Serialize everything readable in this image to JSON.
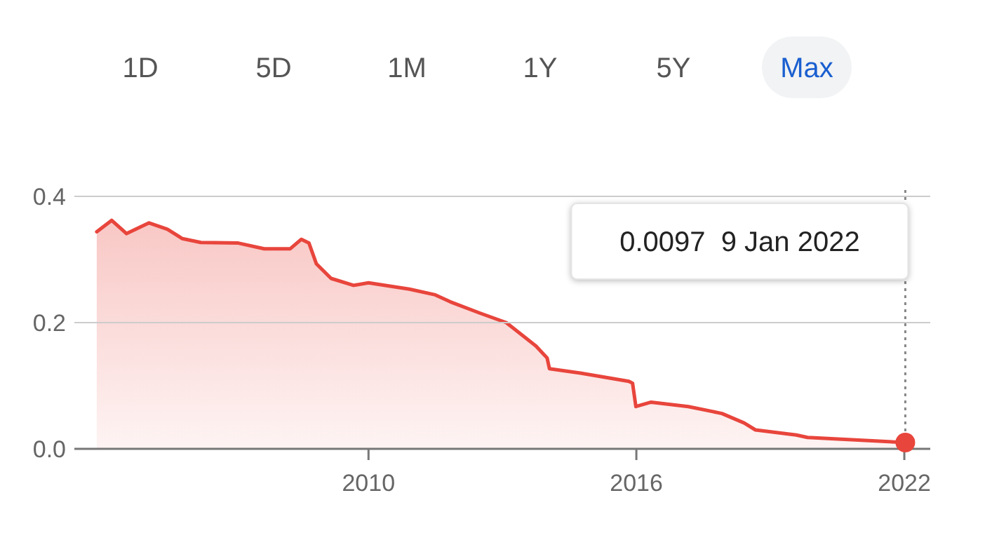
{
  "chart_data": {
    "type": "area",
    "x": [
      "2003-12",
      "2004-04",
      "2004-08",
      "2005-02",
      "2005-07",
      "2005-11",
      "2006-04",
      "2007-02",
      "2007-09",
      "2008-04",
      "2008-07",
      "2008-09",
      "2008-11",
      "2009-03",
      "2009-09",
      "2010-01",
      "2010-12",
      "2011-07",
      "2011-11",
      "2012-07",
      "2013-02",
      "2013-10",
      "2014-01-01",
      "2014-01-20",
      "2014-10",
      "2015-11",
      "2015-12-01",
      "2015-12-28",
      "2016-05",
      "2017-03",
      "2017-12",
      "2018-06",
      "2018-09",
      "2019-08",
      "2019-11",
      "2022-01-09"
    ],
    "series": [
      {
        "color": "#e8453c",
        "values": [
          0.344,
          0.362,
          0.341,
          0.358,
          0.348,
          0.333,
          0.327,
          0.326,
          0.317,
          0.317,
          0.332,
          0.326,
          0.293,
          0.27,
          0.259,
          0.263,
          0.253,
          0.244,
          0.233,
          0.215,
          0.2,
          0.163,
          0.144,
          0.127,
          0.12,
          0.107,
          0.104,
          0.067,
          0.074,
          0.067,
          0.056,
          0.041,
          0.03,
          0.022,
          0.018,
          0.01
        ]
      }
    ],
    "xlim": [
      "2003-06",
      "2022-08"
    ],
    "xticks": [
      {
        "value": "2010",
        "label": "2010"
      },
      {
        "value": "2016",
        "label": "2016"
      },
      {
        "value": "2022",
        "label": "2022"
      }
    ],
    "ylim": [
      0,
      0.41
    ],
    "yticks": [
      {
        "value": 0,
        "label": "0.0"
      },
      {
        "value": 0.2,
        "label": "0.2"
      },
      {
        "value": 0.4,
        "label": "0.4"
      }
    ],
    "grid": "y",
    "ref_lines": [
      {
        "axis": "x",
        "value": "2022-01-09",
        "color": "#888888",
        "line_style": "dotted"
      }
    ],
    "annotations": [
      "1D",
      "5D",
      "1M",
      "1Y",
      "5Y",
      "Max",
      "0.0097  9 Jan 2022"
    ]
  }
}
